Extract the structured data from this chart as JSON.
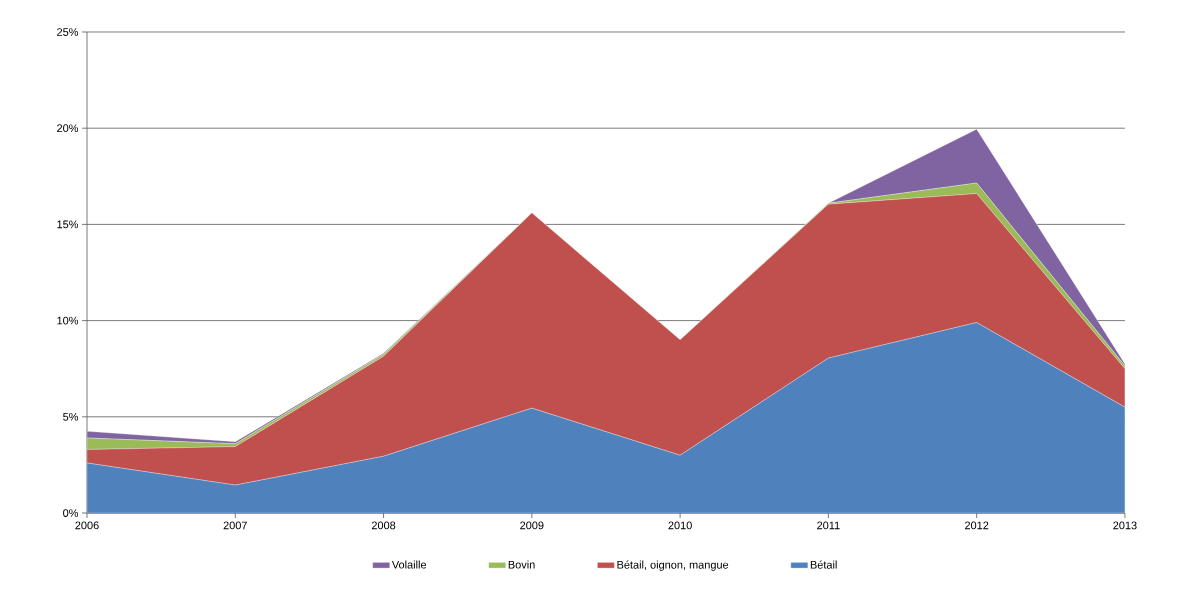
{
  "chart_data": {
    "type": "area",
    "stacked": true,
    "x": [
      2006,
      2007,
      2008,
      2009,
      2010,
      2011,
      2012,
      2013
    ],
    "series": [
      {
        "name": "Bétail",
        "color": "#4f81bd",
        "values": [
          2.6,
          1.45,
          2.95,
          5.45,
          3.0,
          8.05,
          9.9,
          5.5
        ]
      },
      {
        "name": "Bétail, oignon, mangue",
        "color": "#c0504d",
        "values": [
          0.7,
          2.0,
          5.2,
          10.15,
          6.0,
          8.0,
          6.7,
          2.0
        ]
      },
      {
        "name": "Bovin",
        "color": "#9bbb59",
        "values": [
          0.6,
          0.15,
          0.1,
          0.0,
          0.0,
          0.05,
          0.55,
          0.15
        ]
      },
      {
        "name": "Volaille",
        "color": "#8064a2",
        "values": [
          0.35,
          0.1,
          0.05,
          0.0,
          0.0,
          0.0,
          2.8,
          0.1
        ]
      }
    ],
    "xlim": [
      2006,
      2013
    ],
    "xticks": [
      2006,
      2007,
      2008,
      2009,
      2010,
      2011,
      2012,
      2013
    ],
    "ylim": [
      0,
      25
    ],
    "yticks": [
      {
        "value": 0,
        "label": "0%"
      },
      {
        "value": 5,
        "label": "5%"
      },
      {
        "value": 10,
        "label": "10%"
      },
      {
        "value": 15,
        "label": "15%"
      },
      {
        "value": 20,
        "label": "20%"
      },
      {
        "value": 25,
        "label": "25%"
      }
    ],
    "grid": "y",
    "legend": "bottom"
  }
}
